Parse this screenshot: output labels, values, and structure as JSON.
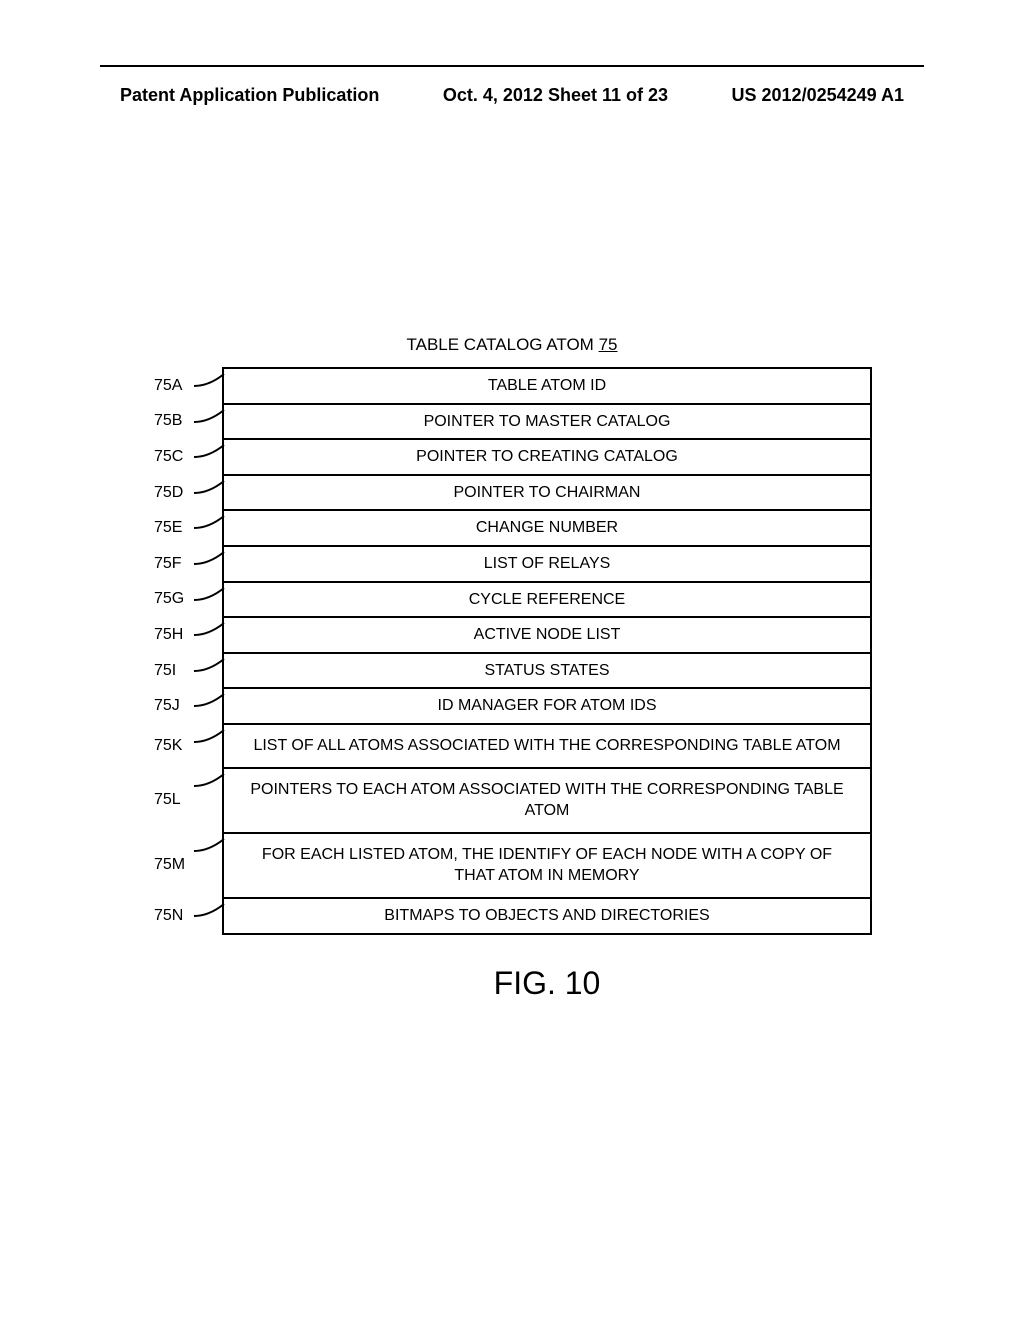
{
  "header": {
    "left": "Patent Application Publication",
    "center": "Oct. 4, 2012  Sheet 11 of 23",
    "right": "US 2012/0254249 A1"
  },
  "table": {
    "title_prefix": "TABLE CATALOG ATOM ",
    "title_number": "75",
    "rows": [
      {
        "label": "75A",
        "text": "TABLE ATOM ID"
      },
      {
        "label": "75B",
        "text": "POINTER TO MASTER CATALOG"
      },
      {
        "label": "75C",
        "text": "POINTER TO CREATING CATALOG"
      },
      {
        "label": "75D",
        "text": "POINTER TO CHAIRMAN"
      },
      {
        "label": "75E",
        "text": "CHANGE NUMBER"
      },
      {
        "label": "75F",
        "text": "LIST OF RELAYS"
      },
      {
        "label": "75G",
        "text": "CYCLE REFERENCE"
      },
      {
        "label": "75H",
        "text": "ACTIVE NODE LIST"
      },
      {
        "label": "75I",
        "text": "STATUS STATES"
      },
      {
        "label": "75J",
        "text": "ID MANAGER FOR ATOM IDS"
      },
      {
        "label": "75K",
        "text": "LIST OF ALL ATOMS ASSOCIATED WITH THE CORRESPONDING TABLE ATOM",
        "tall": true
      },
      {
        "label": "75L",
        "text": "POINTERS TO EACH ATOM ASSOCIATED WITH THE CORRESPONDING TABLE ATOM",
        "tall": true
      },
      {
        "label": "75M",
        "text": "FOR EACH LISTED ATOM, THE IDENTIFY OF EACH NODE WITH A COPY OF THAT ATOM IN MEMORY",
        "tall": true
      },
      {
        "label": "75N",
        "text": "BITMAPS TO OBJECTS AND DIRECTORIES"
      }
    ]
  },
  "figure_caption": "FIG. 10"
}
